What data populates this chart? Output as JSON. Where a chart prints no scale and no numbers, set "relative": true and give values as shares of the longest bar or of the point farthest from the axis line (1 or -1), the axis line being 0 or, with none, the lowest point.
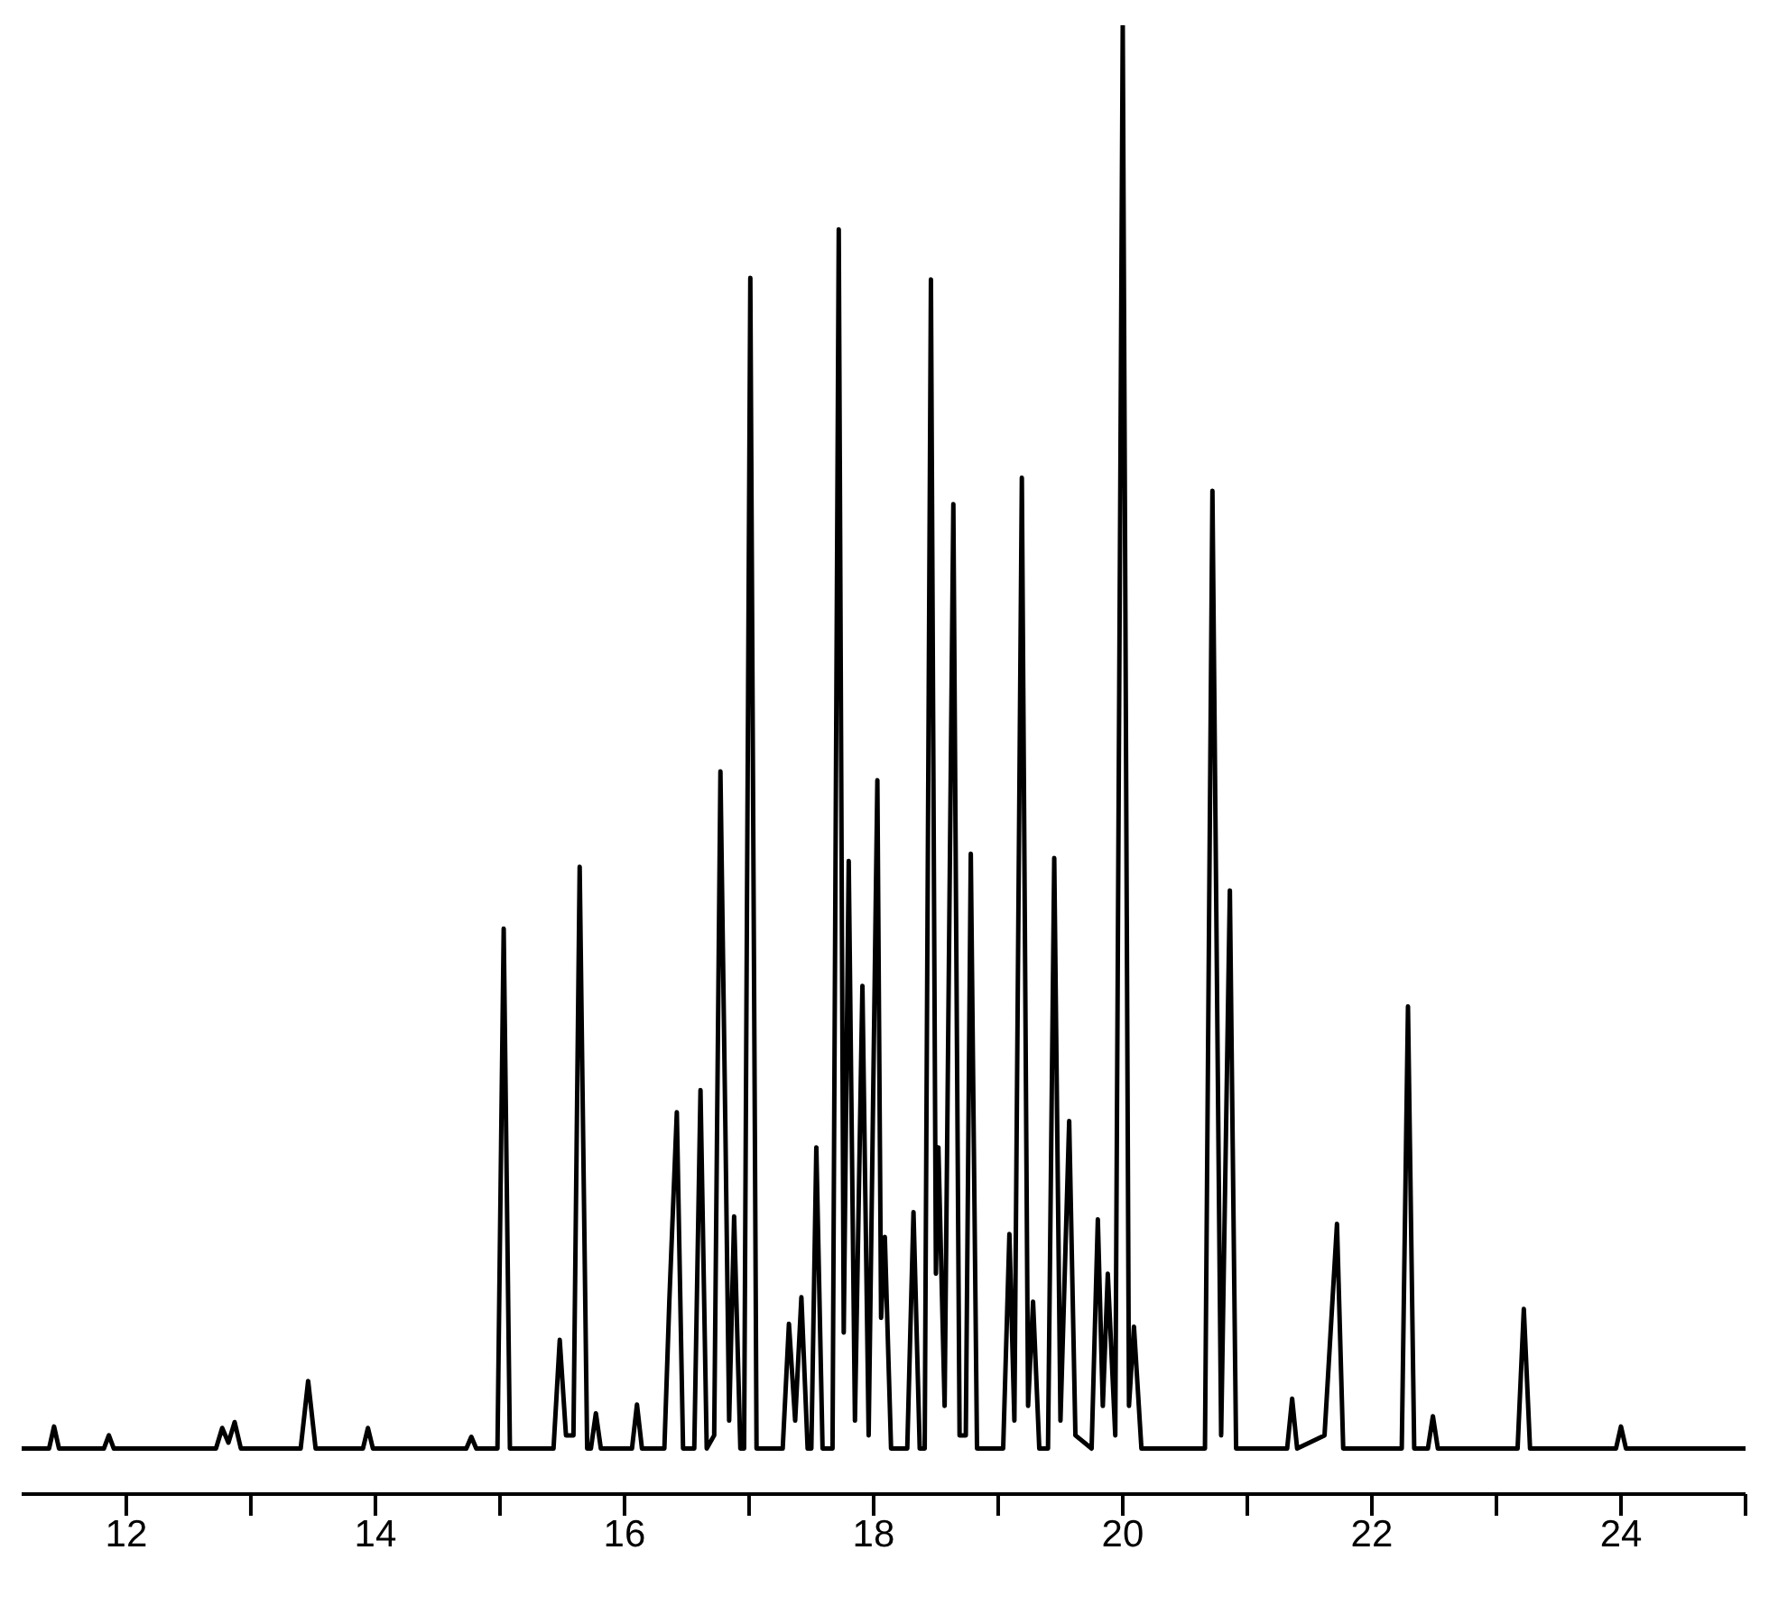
{
  "chart_data": {
    "type": "line",
    "relative": true,
    "x": [
      11.16,
      11.38,
      11.42,
      11.46,
      11.82,
      11.86,
      11.9,
      12.72,
      12.77,
      12.82,
      12.87,
      12.92,
      13.4,
      13.46,
      13.52,
      13.9,
      13.94,
      13.98,
      14.73,
      14.77,
      14.81,
      14.98,
      15.03,
      15.08,
      15.43,
      15.48,
      15.53,
      15.59,
      15.64,
      15.7,
      15.73,
      15.77,
      15.81,
      16.06,
      16.1,
      16.14,
      16.32,
      16.36,
      16.42,
      16.47,
      16.56,
      16.61,
      16.66,
      16.72,
      16.77,
      16.81,
      16.84,
      16.88,
      16.93,
      16.96,
      17.01,
      17.06,
      17.27,
      17.32,
      17.37,
      17.42,
      17.47,
      17.5,
      17.54,
      17.59,
      17.67,
      17.72,
      17.76,
      17.8,
      17.85,
      17.91,
      17.96,
      18.03,
      18.06,
      18.09,
      18.14,
      18.27,
      18.32,
      18.37,
      18.41,
      18.46,
      18.5,
      18.52,
      18.57,
      18.64,
      18.69,
      18.74,
      18.78,
      18.83,
      19.04,
      19.09,
      19.13,
      19.19,
      19.24,
      19.28,
      19.33,
      19.4,
      19.45,
      19.5,
      19.57,
      19.62,
      19.75,
      19.8,
      19.84,
      19.88,
      19.94,
      20.0,
      20.05,
      20.09,
      20.15,
      20.66,
      20.72,
      20.79,
      20.86,
      20.91,
      21.32,
      21.36,
      21.4,
      21.62,
      21.72,
      21.77,
      22.24,
      22.29,
      22.34,
      22.45,
      22.49,
      22.53,
      23.17,
      23.22,
      23.27,
      23.96,
      24.0,
      24.04,
      25.0
    ],
    "values": [
      0.031,
      0.031,
      0.046,
      0.031,
      0.031,
      0.04,
      0.031,
      0.031,
      0.045,
      0.035,
      0.049,
      0.031,
      0.031,
      0.077,
      0.031,
      0.031,
      0.045,
      0.031,
      0.031,
      0.039,
      0.031,
      0.031,
      0.385,
      0.031,
      0.031,
      0.105,
      0.04,
      0.04,
      0.427,
      0.031,
      0.031,
      0.055,
      0.031,
      0.031,
      0.061,
      0.031,
      0.031,
      0.132,
      0.26,
      0.031,
      0.031,
      0.275,
      0.031,
      0.04,
      0.492,
      0.248,
      0.05,
      0.189,
      0.031,
      0.031,
      0.828,
      0.031,
      0.031,
      0.116,
      0.05,
      0.134,
      0.031,
      0.031,
      0.236,
      0.031,
      0.031,
      0.861,
      0.11,
      0.431,
      0.05,
      0.346,
      0.04,
      0.486,
      0.12,
      0.175,
      0.031,
      0.031,
      0.192,
      0.031,
      0.031,
      0.827,
      0.15,
      0.236,
      0.06,
      0.674,
      0.04,
      0.04,
      0.436,
      0.031,
      0.031,
      0.177,
      0.05,
      0.692,
      0.06,
      0.131,
      0.031,
      0.031,
      0.433,
      0.05,
      0.254,
      0.04,
      0.031,
      0.187,
      0.06,
      0.15,
      0.04,
      1,
      0.06,
      0.114,
      0.031,
      0.031,
      0.683,
      0.04,
      0.411,
      0.031,
      0.031,
      0.065,
      0.031,
      0.04,
      0.184,
      0.031,
      0.031,
      0.332,
      0.031,
      0.031,
      0.053,
      0.031,
      0.031,
      0.126,
      0.031,
      0.031,
      0.046,
      0.031,
      0.031
    ],
    "color": "#000000",
    "xlim": [
      11.16,
      25
    ],
    "xticks": [
      12,
      {
        "value": 13,
        "label": null
      },
      14,
      {
        "value": 15,
        "label": null
      },
      16,
      {
        "value": 17,
        "label": null
      },
      18,
      {
        "value": 19,
        "label": null
      },
      20,
      {
        "value": 21,
        "label": null
      },
      22,
      {
        "value": 23,
        "label": null
      },
      24,
      {
        "value": 25,
        "label": null
      }
    ]
  }
}
